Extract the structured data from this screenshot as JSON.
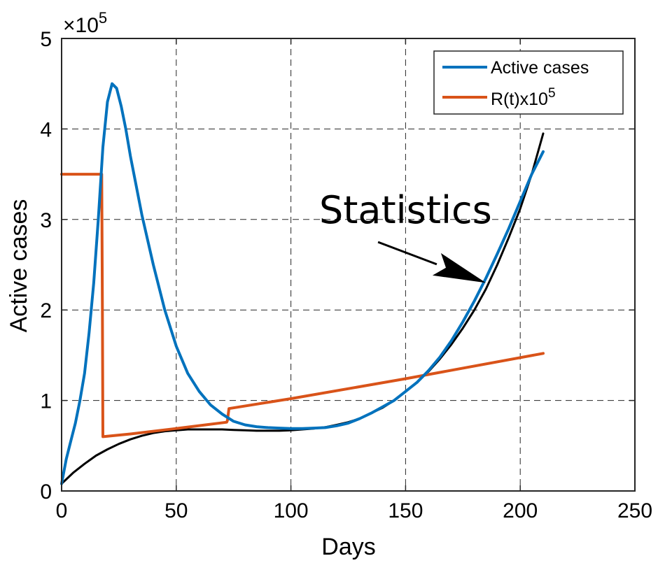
{
  "chart_data": {
    "type": "line",
    "xlabel": "Days",
    "ylabel": "Active cases",
    "xlim": [
      0,
      250
    ],
    "ylim": [
      0,
      5
    ],
    "xticks": [
      0,
      50,
      100,
      150,
      200,
      250
    ],
    "yticks": [
      0,
      1,
      2,
      3,
      4,
      5
    ],
    "y_multiplier": {
      "base": "×10",
      "exponent": "5"
    },
    "grid": true,
    "legend": {
      "placement": "top-right"
    },
    "series": [
      {
        "name": "Active cases",
        "color": "#0072BD",
        "x": [
          0,
          2,
          4,
          6,
          8,
          10,
          12,
          14,
          16,
          18,
          20,
          22,
          24,
          26,
          28,
          30,
          35,
          40,
          45,
          50,
          55,
          60,
          65,
          70,
          75,
          80,
          85,
          90,
          95,
          100,
          105,
          110,
          115,
          120,
          125,
          130,
          135,
          140,
          145,
          150,
          155,
          160,
          165,
          170,
          175,
          180,
          185,
          190,
          195,
          200,
          205,
          210
        ],
        "y": [
          0.08,
          0.35,
          0.55,
          0.75,
          1.0,
          1.3,
          1.75,
          2.3,
          3.0,
          3.8,
          4.3,
          4.5,
          4.45,
          4.25,
          4.0,
          3.7,
          3.05,
          2.5,
          2.0,
          1.6,
          1.3,
          1.1,
          0.95,
          0.85,
          0.77,
          0.73,
          0.71,
          0.7,
          0.695,
          0.69,
          0.69,
          0.695,
          0.7,
          0.72,
          0.75,
          0.8,
          0.86,
          0.93,
          1.0,
          1.1,
          1.2,
          1.33,
          1.48,
          1.66,
          1.87,
          2.1,
          2.35,
          2.62,
          2.9,
          3.2,
          3.5,
          3.75
        ]
      },
      {
        "name": "R(t)x10",
        "name_superscript": "5",
        "color": "#D95319",
        "x": [
          0,
          17.5,
          17.8,
          18,
          30,
          50,
          72,
          72.3,
          73,
          100,
          150,
          210
        ],
        "y": [
          3.5,
          3.5,
          2.0,
          0.6,
          0.63,
          0.69,
          0.76,
          0.78,
          0.91,
          1.02,
          1.24,
          1.52
        ]
      },
      {
        "color": "#000000",
        "x": [
          0,
          5,
          10,
          15,
          20,
          25,
          30,
          35,
          40,
          45,
          50,
          55,
          60,
          65,
          70,
          75,
          80,
          85,
          90,
          95,
          100,
          105,
          110,
          115,
          120,
          125,
          130,
          135,
          140,
          145,
          150,
          155,
          160,
          165,
          170,
          175,
          180,
          185,
          190,
          195,
          200,
          205,
          210
        ],
        "y": [
          0.08,
          0.2,
          0.3,
          0.39,
          0.46,
          0.52,
          0.57,
          0.61,
          0.64,
          0.66,
          0.67,
          0.68,
          0.68,
          0.68,
          0.68,
          0.675,
          0.67,
          0.665,
          0.665,
          0.665,
          0.67,
          0.68,
          0.69,
          0.705,
          0.73,
          0.76,
          0.8,
          0.86,
          0.92,
          1.0,
          1.1,
          1.2,
          1.32,
          1.46,
          1.62,
          1.8,
          2.0,
          2.23,
          2.5,
          2.8,
          3.12,
          3.5,
          3.95
        ]
      }
    ],
    "annotations": [
      {
        "text": "Statistics",
        "x": 150,
        "y": 3.1,
        "arrow_from": [
          138,
          2.75
        ],
        "arrow_to": [
          185,
          2.3
        ]
      }
    ]
  }
}
